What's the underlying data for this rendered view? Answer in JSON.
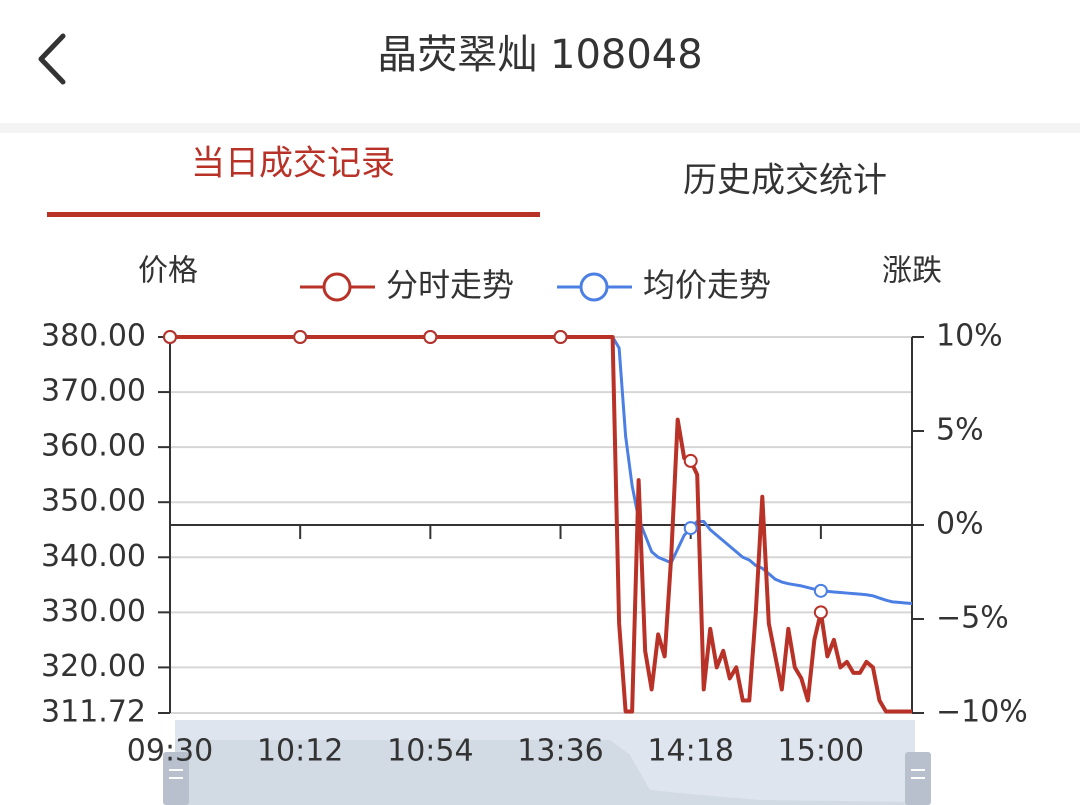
{
  "header": {
    "title": "晶荧翠灿 108048"
  },
  "tabs": [
    {
      "label": "当日成交记录",
      "active": true
    },
    {
      "label": "历史成交统计",
      "active": false
    }
  ],
  "chart_data": {
    "type": "line",
    "y_axis_label": "价格",
    "y2_axis_label": "涨跌",
    "categories": [
      "09:30",
      null,
      null,
      null,
      null,
      null,
      null,
      null,
      null,
      null,
      null,
      null,
      null,
      null,
      null,
      null,
      null,
      null,
      null,
      null,
      "10:12",
      null,
      null,
      null,
      null,
      null,
      null,
      null,
      null,
      null,
      null,
      null,
      null,
      null,
      null,
      null,
      null,
      null,
      null,
      null,
      "10:54",
      null,
      null,
      null,
      null,
      null,
      null,
      null,
      null,
      null,
      null,
      null,
      null,
      null,
      null,
      null,
      null,
      null,
      null,
      null,
      "13:36",
      null,
      null,
      null,
      null,
      null,
      null,
      null,
      null,
      null,
      null,
      null,
      null,
      null,
      null,
      null,
      null,
      null,
      null,
      null,
      "14:18",
      null,
      null,
      null,
      null,
      null,
      null,
      null,
      null,
      null,
      null,
      null,
      null,
      null,
      null,
      null,
      null,
      null,
      null,
      null,
      "15:00",
      null,
      null,
      null,
      null,
      null,
      null,
      null,
      null,
      null,
      null,
      null,
      null,
      null,
      null
    ],
    "series": [
      {
        "name": "分时走势",
        "color": "#b83228",
        "values": [
          380,
          380,
          380,
          380,
          380,
          380,
          380,
          380,
          380,
          380,
          380,
          380,
          380,
          380,
          380,
          380,
          380,
          380,
          380,
          380,
          380,
          380,
          380,
          380,
          380,
          380,
          380,
          380,
          380,
          380,
          380,
          380,
          380,
          380,
          380,
          380,
          380,
          380,
          380,
          380,
          380,
          380,
          380,
          380,
          380,
          380,
          380,
          380,
          380,
          380,
          380,
          380,
          380,
          380,
          380,
          380,
          380,
          380,
          380,
          380,
          380,
          380,
          380,
          380,
          380,
          380,
          380,
          380,
          380,
          328,
          312,
          312,
          354,
          323,
          316,
          326,
          322,
          340,
          365,
          358,
          357.5,
          355,
          316,
          327,
          320,
          323,
          318,
          320,
          314,
          314,
          330,
          351,
          328,
          322,
          316,
          327,
          320,
          318,
          314,
          325,
          330,
          322,
          325,
          320,
          321,
          319,
          319,
          321,
          320,
          314,
          312,
          312,
          312,
          312,
          312
        ]
      },
      {
        "name": "均价走势",
        "color": "#4c7fe3",
        "values": [
          380,
          380,
          380,
          380,
          380,
          380,
          380,
          380,
          380,
          380,
          380,
          380,
          380,
          380,
          380,
          380,
          380,
          380,
          380,
          380,
          380,
          380,
          380,
          380,
          380,
          380,
          380,
          380,
          380,
          380,
          380,
          380,
          380,
          380,
          380,
          380,
          380,
          380,
          380,
          380,
          380,
          380,
          380,
          380,
          380,
          380,
          380,
          380,
          380,
          380,
          380,
          380,
          380,
          380,
          380,
          380,
          380,
          380,
          380,
          380,
          380,
          380,
          380,
          380,
          380,
          380,
          380,
          380,
          380,
          378,
          362,
          353,
          347,
          344,
          341,
          340,
          339.5,
          339,
          341.5,
          344,
          345.3,
          346.5,
          346.5,
          345,
          344,
          343,
          342,
          341,
          340,
          339.5,
          338.5,
          338,
          337,
          336,
          335.5,
          335.2,
          335,
          334.8,
          334.5,
          334.2,
          333.9,
          333.8,
          333.7,
          333.6,
          333.5,
          333.4,
          333.3,
          333.2,
          333,
          332.6,
          332.2,
          331.9,
          331.8,
          331.7,
          331.6
        ]
      }
    ],
    "ylim": [
      311.72,
      380
    ],
    "yticks": [
      {
        "value": 380,
        "label": "380.00"
      },
      {
        "value": 370,
        "label": "370.00"
      },
      {
        "value": 360,
        "label": "360.00"
      },
      {
        "value": 350,
        "label": "350.00"
      },
      {
        "value": 340,
        "label": "340.00"
      },
      {
        "value": 330,
        "label": "330.00"
      },
      {
        "value": 320,
        "label": "320.00"
      },
      {
        "value": 311.72,
        "label": "311.72"
      }
    ],
    "y2lim": [
      -10,
      10
    ],
    "y2ticks": [
      {
        "value": 10,
        "label": "10%"
      },
      {
        "value": 5,
        "label": "5%"
      },
      {
        "value": 0,
        "label": "0%"
      },
      {
        "value": -5,
        "label": "−5%"
      },
      {
        "value": -10,
        "label": "−10%"
      }
    ],
    "grid": true,
    "legend": "top"
  }
}
